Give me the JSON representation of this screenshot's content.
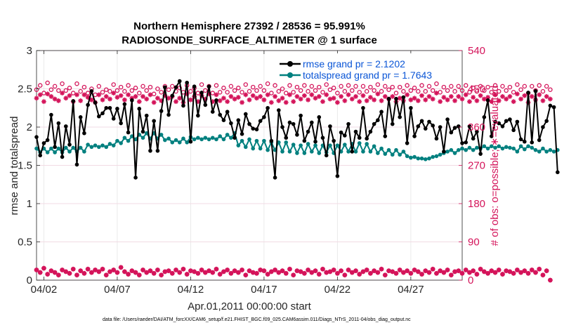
{
  "chart_data": {
    "type": "line",
    "title": "Northern Hemisphere 27392 / 28536 = 95.991%",
    "subtitle": "RADIOSONDE_SURFACE_ALTIMETER @ 1 surface",
    "xlabel": "Apr.01,2011 00:00:00 start",
    "ylabel_left": "rmse and totalspread",
    "ylabel_right": "# of obs: o=possible; ∗=evaluated",
    "footnote": "data file: /Users/raeder/DAI/ATM_forcXX/CAM6_setup/f.e21.FHIST_BGC.f09_025.CAM6assim.011/Diags_NTrS_2011-04/obs_diag_output.nc",
    "xlim": [
      1.5,
      30.5
    ],
    "ylim_left": [
      0,
      3
    ],
    "ylim_right": [
      0,
      540
    ],
    "xticks": [
      2,
      7,
      12,
      17,
      22,
      27
    ],
    "xtick_labels": [
      "04/02",
      "04/07",
      "04/12",
      "04/17",
      "04/22",
      "04/27"
    ],
    "yticks_left": [
      "0",
      "0.5",
      "1",
      "1.5",
      "2",
      "2.5",
      "3"
    ],
    "yticks_right": [
      "0",
      "90",
      "180",
      "270",
      "360",
      "450",
      "540"
    ],
    "colors": {
      "rmse": "#000000",
      "spread": "#00807f",
      "obs": "#d4145a",
      "legend_text": "#0a55d6"
    },
    "series": [
      {
        "name": "rmse grand pr = 2.1202",
        "axis": "left",
        "x_start": 1.5,
        "x_step": 0.25,
        "values": [
          1.87,
          1.63,
          1.79,
          1.83,
          2.16,
          1.74,
          2.05,
          1.61,
          2.01,
          1.77,
          2.34,
          1.51,
          2.13,
          1.92,
          2.29,
          2.47,
          2.32,
          2.14,
          2.18,
          2.25,
          2.25,
          2.11,
          2.24,
          2.05,
          2.3,
          1.93,
          2.35,
          1.34,
          2.24,
          1.94,
          2.15,
          1.69,
          2.08,
          1.69,
          2.21,
          2.52,
          2.16,
          2.41,
          2.52,
          2.6,
          2.28,
          2.58,
          1.81,
          2.53,
          2.15,
          2.45,
          2.29,
          2.53,
          2.2,
          2.35,
          2.16,
          2.09,
          2.2,
          2.05,
          1.86,
          2.09,
          1.91,
          2.17,
          2.04,
          1.98,
          1.97,
          2.08,
          2.13,
          2.25,
          1.82,
          1.34,
          2.22,
          2.0,
          1.86,
          2.06,
          2.04,
          1.9,
          2.15,
          1.82,
          1.94,
          2.06,
          1.81,
          2.13,
          1.86,
          1.63,
          2.01,
          1.82,
          1.36,
          1.93,
          1.89,
          2.04,
          1.68,
          1.94,
          1.86,
          2.25,
          1.85,
          1.94,
          2.04,
          2.09,
          2.2,
          1.88,
          2.37,
          2.04,
          2.37,
          2.13,
          2.39,
          1.79,
          2.25,
          1.88,
          2.01,
          2.08,
          1.98,
          2.07,
          2.02,
          1.85,
          2.0,
          1.68,
          2.1,
          1.93,
          1.99,
          2.01,
          1.79,
          1.8,
          2.01,
          1.85,
          1.94,
          1.65,
          2.13,
          2.35,
          1.88,
          2.07,
          2.05,
          2.01,
          2.08,
          2.1,
          1.96,
          2.07,
          1.84,
          1.81,
          2.45,
          1.8,
          2.47,
          1.83,
          2.0,
          2.08,
          2.28,
          2.26,
          1.41
        ]
      },
      {
        "name": "totalspread grand pr = 1.7643",
        "axis": "left",
        "x_start": 1.5,
        "x_step": 0.25,
        "values": [
          1.72,
          1.67,
          1.72,
          1.67,
          1.72,
          1.67,
          1.72,
          1.67,
          1.73,
          1.68,
          1.73,
          1.68,
          1.73,
          1.68,
          1.77,
          1.74,
          1.76,
          1.74,
          1.76,
          1.74,
          1.78,
          1.76,
          1.82,
          1.79,
          1.86,
          1.82,
          1.88,
          1.84,
          1.9,
          1.86,
          1.92,
          1.85,
          1.92,
          1.85,
          1.9,
          1.83,
          1.85,
          1.8,
          1.83,
          1.8,
          1.85,
          1.8,
          1.87,
          1.84,
          1.86,
          1.84,
          1.86,
          1.84,
          1.86,
          1.84,
          1.88,
          1.84,
          1.9,
          1.86,
          1.92,
          1.76,
          1.82,
          1.74,
          1.84,
          1.72,
          1.82,
          1.72,
          1.82,
          1.7,
          1.8,
          1.7,
          1.8,
          1.68,
          1.8,
          1.68,
          1.77,
          1.66,
          1.76,
          1.66,
          1.78,
          1.68,
          1.76,
          1.66,
          1.76,
          1.67,
          1.76,
          1.66,
          1.76,
          1.68,
          1.77,
          1.68,
          1.78,
          1.68,
          1.79,
          1.68,
          1.78,
          1.68,
          1.75,
          1.66,
          1.72,
          1.65,
          1.7,
          1.64,
          1.7,
          1.64,
          1.68,
          1.62,
          1.6,
          1.61,
          1.59,
          1.59,
          1.58,
          1.59,
          1.61,
          1.62,
          1.64,
          1.66,
          1.68,
          1.7,
          1.66,
          1.7,
          1.72,
          1.7,
          1.73,
          1.7,
          1.73,
          1.72,
          1.75,
          1.72,
          1.75,
          1.73,
          1.75,
          1.72,
          1.74,
          1.73,
          1.72,
          1.68,
          1.75,
          1.71,
          1.75,
          1.73,
          1.7,
          1.68,
          1.72,
          1.68,
          1.7,
          1.68,
          1.7
        ]
      },
      {
        "name": "possible",
        "axis": "right",
        "marker": "o",
        "x_start": 1.5,
        "x_step": 0.25,
        "values": [
          448,
          458,
          440,
          464,
          448,
          456,
          446,
          462,
          446,
          452,
          440,
          462,
          444,
          454,
          440,
          450,
          436,
          456,
          442,
          448,
          444,
          460,
          446,
          454,
          444,
          458,
          446,
          452,
          440,
          456,
          446,
          454,
          438,
          450,
          442,
          456,
          448,
          456,
          444,
          452,
          442,
          458,
          444,
          452,
          440,
          460,
          446,
          456,
          440,
          458,
          442,
          452,
          442,
          456,
          446,
          452,
          442,
          460,
          444,
          454,
          446,
          456,
          446,
          462,
          440,
          458,
          444,
          450,
          440,
          458,
          442,
          454,
          446,
          458,
          444,
          456,
          446,
          454,
          442,
          460,
          448,
          452,
          440,
          456,
          444,
          458,
          446,
          456,
          442,
          456,
          444,
          454,
          446,
          460,
          444,
          456,
          448,
          454,
          440,
          454,
          444,
          458,
          446,
          452,
          444,
          458,
          444,
          456,
          446,
          462,
          442,
          454,
          446,
          456,
          444,
          456,
          446,
          458,
          442,
          452,
          444,
          456,
          446,
          454,
          442,
          458,
          444,
          456,
          446,
          454,
          442,
          460,
          448,
          456,
          440,
          456,
          446,
          458,
          444,
          456,
          448
        ]
      },
      {
        "name": "evaluated",
        "axis": "right",
        "marker": "*",
        "x_start": 1.5,
        "x_step": 0.25,
        "values": [
          428,
          436,
          420,
          438,
          432,
          426,
          422,
          440,
          428,
          434,
          420,
          436,
          422,
          436,
          430,
          424,
          418,
          436,
          424,
          432,
          426,
          440,
          430,
          434,
          424,
          436,
          428,
          432,
          420,
          432,
          426,
          436,
          418,
          428,
          422,
          434,
          428,
          432,
          420,
          428,
          418,
          438,
          424,
          432,
          420,
          434,
          426,
          438,
          420,
          436,
          422,
          428,
          420,
          432,
          426,
          430,
          418,
          436,
          424,
          434,
          428,
          432,
          424,
          436,
          418,
          432,
          422,
          428,
          418,
          436,
          420,
          432,
          426,
          434,
          424,
          436,
          428,
          432,
          420,
          436,
          426,
          428,
          418,
          432,
          422,
          436,
          426,
          432,
          420,
          434,
          422,
          430,
          424,
          438,
          422,
          432,
          426,
          432,
          420,
          428,
          422,
          436,
          424,
          428,
          422,
          434,
          424,
          432,
          426,
          440,
          420,
          430,
          424,
          432,
          422,
          432,
          426,
          436,
          420,
          430,
          422,
          434,
          426,
          430,
          420,
          436,
          422,
          432,
          426,
          432,
          420,
          438,
          426,
          434,
          418,
          432,
          424,
          436,
          422,
          432,
          426
        ]
      },
      {
        "name": "possible (low)",
        "axis": "right",
        "marker": "o",
        "x_start": 1.5,
        "x_step": 0.25,
        "values": [
          24,
          18,
          28,
          14,
          22,
          18,
          12,
          24,
          20,
          16,
          26,
          12,
          22,
          16,
          26,
          18,
          24,
          20,
          26,
          12,
          20,
          24,
          18,
          30,
          20,
          14,
          22,
          18,
          12,
          24,
          18,
          22,
          16,
          24,
          12,
          20,
          22,
          16,
          24,
          18,
          26,
          14,
          22,
          20,
          16,
          24,
          18,
          22,
          18,
          26,
          14,
          20,
          24,
          16,
          22,
          18,
          24,
          12,
          22,
          18,
          16,
          24,
          22,
          14,
          20,
          24,
          18,
          22,
          16,
          26,
          12,
          22,
          20,
          16,
          24,
          18,
          22,
          14,
          26,
          18,
          20,
          24,
          16,
          22,
          12,
          24,
          18,
          22,
          14,
          20,
          24,
          16,
          22,
          18,
          26,
          12,
          22,
          20,
          16,
          24,
          18,
          22,
          16,
          24,
          20,
          14,
          22,
          18,
          26,
          16,
          22,
          18,
          24,
          12,
          20,
          22,
          16,
          24,
          18,
          22,
          14,
          26,
          20,
          16,
          22,
          18,
          24,
          14,
          22,
          20,
          16,
          24,
          18,
          22,
          16,
          24,
          18,
          26,
          12,
          22,
          0
        ]
      },
      {
        "name": "evaluated (low)",
        "axis": "right",
        "marker": "*",
        "x_start": 1.5,
        "x_step": 0.25,
        "values": [
          24,
          18,
          28,
          14,
          22,
          18,
          12,
          24,
          20,
          16,
          26,
          12,
          22,
          16,
          26,
          18,
          24,
          20,
          26,
          12,
          20,
          24,
          18,
          30,
          20,
          14,
          22,
          18,
          12,
          24,
          18,
          22,
          16,
          24,
          12,
          20,
          22,
          16,
          24,
          18,
          26,
          14,
          22,
          20,
          16,
          24,
          18,
          22,
          18,
          26,
          14,
          20,
          24,
          16,
          22,
          18,
          24,
          12,
          22,
          18,
          16,
          24,
          22,
          14,
          20,
          24,
          18,
          22,
          16,
          26,
          12,
          22,
          20,
          16,
          24,
          18,
          22,
          14,
          26,
          18,
          20,
          24,
          16,
          22,
          12,
          24,
          18,
          22,
          14,
          20,
          24,
          16,
          22,
          18,
          26,
          12,
          22,
          20,
          16,
          24,
          18,
          22,
          16,
          24,
          20,
          14,
          22,
          18,
          26,
          16,
          22,
          18,
          24,
          12,
          20,
          22,
          16,
          24,
          18,
          22,
          14,
          26,
          20,
          16,
          22,
          18,
          24,
          14,
          22,
          20,
          16,
          24,
          18,
          22,
          16,
          24,
          18,
          26,
          12,
          22,
          0
        ]
      }
    ],
    "legend": [
      {
        "label": "rmse grand pr = 2.1202"
      },
      {
        "label": "totalspread grand pr = 1.7643"
      }
    ]
  }
}
